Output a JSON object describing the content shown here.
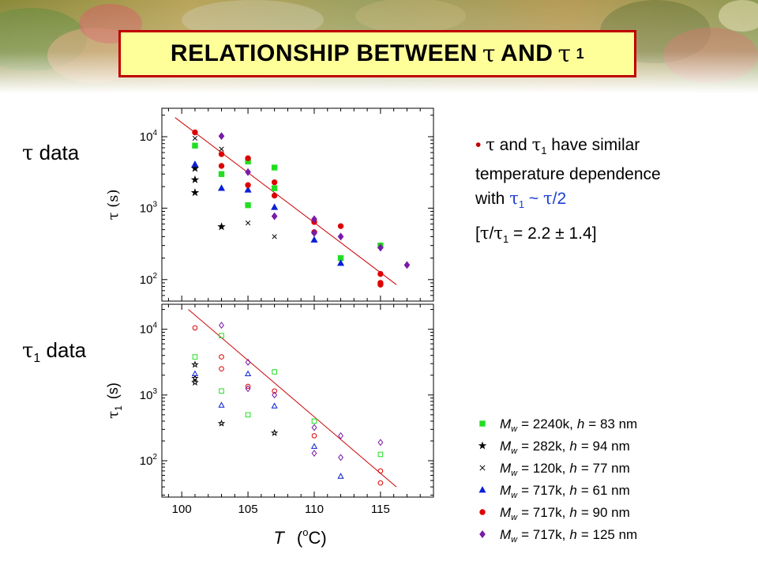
{
  "title": {
    "prefix": "RELATIONSHIP BETWEEN",
    "sym1": "τ",
    "mid": "AND",
    "sym2": "τ",
    "sub2": "1"
  },
  "labels": {
    "tau_sym": "τ",
    "tau_text": "data",
    "tau1_sym": "τ",
    "tau1_sub": "1",
    "tau1_text": "data"
  },
  "notes": {
    "bullet": "•",
    "l1_sym1": "τ",
    "l1_and": "and",
    "l1_sym2": "τ",
    "l1_sub": "1",
    "l1_rest": "have similar",
    "l2": "temperature dependence",
    "l3_with": "with",
    "l3_sym1": "τ",
    "l3_sub": "1",
    "l3_rel": "~",
    "l3_sym2": "τ",
    "l3_tail": "/2",
    "l4_open": "[",
    "l4_sym1": "τ",
    "l4_slash": "/",
    "l4_sym2": "τ",
    "l4_sub": "1",
    "l4_tail": "= 2.2 ± 1.4]"
  },
  "colors": {
    "title_border": "#c00000",
    "title_bg": "#ffff99",
    "fit_line": "#cc0000",
    "accent_blue": "#1a3fd8"
  },
  "legend": [
    {
      "marker": "square",
      "color": "#22dd22",
      "mw": "= 2240k,",
      "h": "= 83 nm"
    },
    {
      "marker": "star",
      "color": "#000000",
      "mw": "= 282k,",
      "h": "= 94 nm"
    },
    {
      "marker": "cross",
      "color": "#000000",
      "mw": "= 120k,",
      "h": "= 77 nm"
    },
    {
      "marker": "triangle",
      "color": "#0a1fd8",
      "mw": "= 717k,",
      "h": "= 61 nm"
    },
    {
      "marker": "circle",
      "color": "#dd0000",
      "mw": "= 717k,",
      "h": "= 90 nm"
    },
    {
      "marker": "diamond",
      "color": "#7a1aa8",
      "mw": "= 717k,",
      "h": "= 125 nm"
    }
  ],
  "chart_data": [
    {
      "type": "scatter",
      "ylabel": "τ (s)",
      "yscale": "log",
      "ylim": [
        50,
        25000
      ],
      "xlim": [
        98.5,
        119
      ],
      "yticks": [
        {
          "v": 100,
          "base": "10",
          "exp": "2"
        },
        {
          "v": 1000,
          "base": "10",
          "exp": "3"
        },
        {
          "v": 10000,
          "base": "10",
          "exp": "4"
        }
      ],
      "fit_line": [
        {
          "x": 99.5,
          "y": 18500
        },
        {
          "x": 116.2,
          "y": 85
        }
      ],
      "series": [
        {
          "marker": "square",
          "filled": true,
          "points": [
            {
              "x": 101,
              "y": 7500
            },
            {
              "x": 103,
              "y": 3000
            },
            {
              "x": 105,
              "y": 4500
            },
            {
              "x": 105,
              "y": 1100
            },
            {
              "x": 107,
              "y": 3700
            },
            {
              "x": 107,
              "y": 1900
            },
            {
              "x": 112,
              "y": 200
            },
            {
              "x": 115,
              "y": 300
            }
          ]
        },
        {
          "marker": "star",
          "filled": true,
          "points": [
            {
              "x": 101,
              "y": 3600
            },
            {
              "x": 101,
              "y": 2500
            },
            {
              "x": 101,
              "y": 1650
            },
            {
              "x": 103,
              "y": 550
            }
          ]
        },
        {
          "marker": "cross",
          "filled": false,
          "points": [
            {
              "x": 101,
              "y": 9500
            },
            {
              "x": 103,
              "y": 6700
            },
            {
              "x": 105,
              "y": 620
            },
            {
              "x": 107,
              "y": 400
            }
          ]
        },
        {
          "marker": "triangle",
          "filled": true,
          "points": [
            {
              "x": 101,
              "y": 4100
            },
            {
              "x": 103,
              "y": 1900
            },
            {
              "x": 105,
              "y": 1800
            },
            {
              "x": 107,
              "y": 1030
            },
            {
              "x": 110,
              "y": 360
            },
            {
              "x": 112,
              "y": 170
            }
          ]
        },
        {
          "marker": "circle",
          "filled": true,
          "points": [
            {
              "x": 101,
              "y": 11500
            },
            {
              "x": 103,
              "y": 5700
            },
            {
              "x": 103,
              "y": 3900
            },
            {
              "x": 105,
              "y": 5000
            },
            {
              "x": 105,
              "y": 2100
            },
            {
              "x": 107,
              "y": 2300
            },
            {
              "x": 107,
              "y": 1500
            },
            {
              "x": 110,
              "y": 640
            },
            {
              "x": 110,
              "y": 460
            },
            {
              "x": 112,
              "y": 560
            },
            {
              "x": 115,
              "y": 120
            },
            {
              "x": 115,
              "y": 90
            },
            {
              "x": 115,
              "y": 85
            }
          ]
        },
        {
          "marker": "diamond",
          "filled": true,
          "points": [
            {
              "x": 103,
              "y": 10200
            },
            {
              "x": 105,
              "y": 3200
            },
            {
              "x": 107,
              "y": 770
            },
            {
              "x": 110,
              "y": 700
            },
            {
              "x": 110,
              "y": 450
            },
            {
              "x": 112,
              "y": 400
            },
            {
              "x": 115,
              "y": 280
            },
            {
              "x": 117,
              "y": 160
            }
          ]
        }
      ]
    },
    {
      "type": "scatter",
      "ylabel": "τ1 (s)",
      "ylabel_sym": "τ",
      "ylabel_sub": "1",
      "ylabel_unit": "(s)",
      "xlabel": "T (oC)",
      "xlabel_T": "T",
      "xlabel_open": "(",
      "xlabel_sup": "o",
      "xlabel_close": "C)",
      "yscale": "log",
      "ylim": [
        28,
        24000
      ],
      "xlim": [
        98.5,
        119
      ],
      "xticks": [
        100,
        105,
        110,
        115
      ],
      "yticks": [
        {
          "v": 100,
          "base": "10",
          "exp": "2"
        },
        {
          "v": 1000,
          "base": "10",
          "exp": "3"
        },
        {
          "v": 10000,
          "base": "10",
          "exp": "4"
        }
      ],
      "fit_line": [
        {
          "x": 100.5,
          "y": 20000
        },
        {
          "x": 116.2,
          "y": 40
        }
      ],
      "series": [
        {
          "marker": "square",
          "filled": false,
          "points": [
            {
              "x": 101,
              "y": 3800
            },
            {
              "x": 103,
              "y": 8000
            },
            {
              "x": 103,
              "y": 1150
            },
            {
              "x": 105,
              "y": 500
            },
            {
              "x": 107,
              "y": 2250
            },
            {
              "x": 110,
              "y": 400
            },
            {
              "x": 115,
              "y": 125
            }
          ]
        },
        {
          "marker": "star",
          "filled": false,
          "points": [
            {
              "x": 101,
              "y": 2900
            },
            {
              "x": 101,
              "y": 1800
            },
            {
              "x": 101,
              "y": 1550
            },
            {
              "x": 103,
              "y": 370
            },
            {
              "x": 107,
              "y": 265
            }
          ]
        },
        {
          "marker": "triangle",
          "filled": false,
          "points": [
            {
              "x": 101,
              "y": 2100
            },
            {
              "x": 103,
              "y": 700
            },
            {
              "x": 105,
              "y": 2100
            },
            {
              "x": 107,
              "y": 680
            },
            {
              "x": 110,
              "y": 165
            },
            {
              "x": 112,
              "y": 58
            }
          ]
        },
        {
          "marker": "circle",
          "filled": false,
          "points": [
            {
              "x": 101,
              "y": 10500
            },
            {
              "x": 103,
              "y": 3800
            },
            {
              "x": 103,
              "y": 2500
            },
            {
              "x": 105,
              "y": 1350
            },
            {
              "x": 107,
              "y": 1150
            },
            {
              "x": 110,
              "y": 240
            },
            {
              "x": 115,
              "y": 70
            },
            {
              "x": 115,
              "y": 46
            }
          ]
        },
        {
          "marker": "diamond",
          "filled": false,
          "points": [
            {
              "x": 103,
              "y": 11500
            },
            {
              "x": 105,
              "y": 3150
            },
            {
              "x": 105,
              "y": 1250
            },
            {
              "x": 107,
              "y": 1000
            },
            {
              "x": 110,
              "y": 320
            },
            {
              "x": 110,
              "y": 130
            },
            {
              "x": 112,
              "y": 240
            },
            {
              "x": 112,
              "y": 112
            },
            {
              "x": 115,
              "y": 190
            }
          ]
        }
      ]
    }
  ]
}
